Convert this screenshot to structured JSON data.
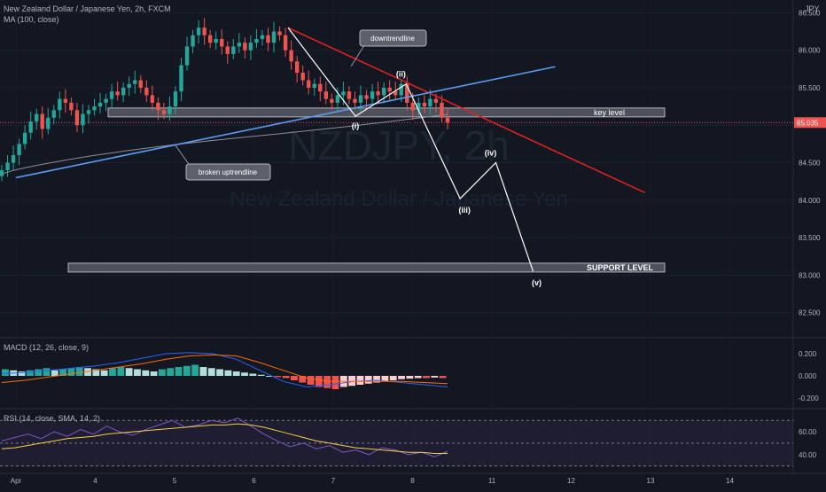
{
  "header": {
    "symbol_line": "New Zealand Dollar / Japanese Yen, 2h, FXCM",
    "ma_line": "MA (100, close)",
    "currency": "JPY"
  },
  "watermark": {
    "symbol": "NZDJPY, 2h",
    "name": "New Zealand Dollar / Japanese Yen"
  },
  "colors": {
    "background": "#131722",
    "up": "#26a69a",
    "down": "#ef5350",
    "ma": "#8c8f96",
    "downtrend": "#e02020",
    "uptrend": "#5b9cf0",
    "wave": "#ffffff",
    "macd_line": "#2962ff",
    "signal_line": "#ff6d00",
    "rsi_line": "#7e57c2",
    "rsi_ma": "#f7d046"
  },
  "chart_data": [
    {
      "type": "candlestick",
      "title": "New Zealand Dollar / Japanese Yen, 2h, FXCM",
      "price_axis": {
        "ticks": [
          86.5,
          86.0,
          85.5,
          85.0,
          84.5,
          84.0,
          83.5,
          83.0,
          82.5
        ],
        "tick_labels": [
          "86.500",
          "86.000",
          "85.500",
          "85.000",
          "84.500",
          "84.000",
          "83.500",
          "83.000",
          "82.500"
        ],
        "range": [
          82.2,
          86.67
        ],
        "current_price": 85.035,
        "current_label": "85.035"
      },
      "time_axis": {
        "labels": [
          "Apr",
          "4",
          "5",
          "6",
          "7",
          "8",
          "11",
          "12",
          "13",
          "14"
        ],
        "label_positions_days": [
          0,
          1,
          2,
          3,
          4,
          5,
          6,
          7,
          8,
          9
        ]
      },
      "candles_close_path": [
        84.4,
        84.5,
        84.6,
        84.75,
        84.9,
        85.05,
        85.15,
        84.95,
        85.1,
        85.2,
        85.35,
        85.3,
        85.2,
        85.0,
        85.15,
        85.2,
        85.25,
        85.3,
        85.35,
        85.45,
        85.4,
        85.5,
        85.55,
        85.6,
        85.5,
        85.4,
        85.3,
        85.2,
        85.15,
        85.25,
        85.45,
        85.8,
        86.05,
        86.2,
        86.3,
        86.2,
        86.1,
        86.15,
        86.05,
        85.95,
        86.05,
        86.1,
        86.0,
        86.1,
        86.15,
        86.2,
        86.1,
        86.25,
        86.2,
        86.0,
        85.85,
        85.7,
        85.6,
        85.5,
        85.55,
        85.45,
        85.35,
        85.3,
        85.4,
        85.45,
        85.35,
        85.3,
        85.4,
        85.35,
        85.45,
        85.4,
        85.5,
        85.45,
        85.4,
        85.55,
        85.3,
        85.2,
        85.3,
        85.25,
        85.35,
        85.3,
        85.1,
        85.035
      ],
      "moving_average": {
        "name": "MA (100, close)",
        "start": 84.35,
        "end": 85.15
      },
      "annotations": {
        "downtrendline": {
          "label": "downtrendline",
          "from": [
            3.43,
            86.3
          ],
          "to": [
            7.93,
            84.1
          ]
        },
        "uptrendline": {
          "label": "broken uptrendline",
          "from": [
            0,
            84.3
          ],
          "to": [
            6.8,
            85.78
          ]
        },
        "key_level": {
          "label": "key level",
          "price": 85.17
        },
        "support_level": {
          "label": "SUPPORT LEVEL",
          "price": 83.1
        },
        "waves": [
          {
            "label": "(i)",
            "price": 85.12
          },
          {
            "label": "(ii)",
            "price": 85.55
          },
          {
            "label": "(iii)",
            "price": 84.02
          },
          {
            "label": "(iv)",
            "price": 84.5
          },
          {
            "label": "(v)",
            "price": 83.05
          }
        ]
      }
    },
    {
      "type": "bar",
      "title": "MACD (12, 26, close, 9)",
      "ticks": [
        0.2,
        0.0,
        -0.2
      ],
      "tick_labels": [
        "0.200",
        "0.000",
        "-0.200"
      ],
      "range": [
        -0.28,
        0.32
      ],
      "histogram": [
        0.06,
        0.05,
        0.04,
        0.05,
        0.06,
        0.07,
        0.05,
        0.06,
        0.07,
        0.08,
        0.07,
        0.06,
        0.05,
        0.07,
        0.08,
        0.07,
        0.06,
        0.05,
        0.04,
        0.06,
        0.07,
        0.08,
        0.09,
        0.1,
        0.08,
        0.07,
        0.06,
        0.05,
        0.04,
        0.03,
        0.02,
        0.01,
        0.0,
        -0.01,
        -0.02,
        -0.04,
        -0.06,
        -0.08,
        -0.1,
        -0.11,
        -0.12,
        -0.1,
        -0.09,
        -0.08,
        -0.07,
        -0.06,
        -0.05,
        -0.04,
        -0.03,
        -0.025,
        -0.02,
        -0.02,
        -0.015,
        -0.02
      ],
      "macd_line": [
        0.02,
        0.03,
        0.05,
        0.07,
        0.09,
        0.12,
        0.16,
        0.2,
        0.21,
        0.2,
        0.15,
        0.05,
        -0.05,
        -0.1,
        -0.08,
        -0.05,
        -0.04,
        -0.06,
        -0.08,
        -0.1
      ],
      "signal_line": [
        -0.06,
        -0.04,
        -0.01,
        0.02,
        0.05,
        0.08,
        0.11,
        0.15,
        0.18,
        0.19,
        0.18,
        0.12,
        0.05,
        -0.02,
        -0.05,
        -0.05,
        -0.05,
        -0.05,
        -0.06,
        -0.07
      ]
    },
    {
      "type": "line",
      "title": "RSI (14, close, SMA, 14, 2)",
      "ticks": [
        60,
        40
      ],
      "tick_labels": [
        "60.00",
        "40.00"
      ],
      "range": [
        25,
        78
      ],
      "rsi": [
        52,
        55,
        58,
        54,
        60,
        56,
        62,
        58,
        65,
        60,
        57,
        62,
        66,
        70,
        64,
        66,
        70,
        68,
        72,
        65,
        58,
        52,
        47,
        50,
        45,
        48,
        42,
        44,
        40,
        46,
        44,
        40,
        42,
        38,
        43
      ],
      "rsi_ma": [
        45,
        46,
        48,
        50,
        52,
        54,
        55,
        56,
        58,
        59,
        60,
        61,
        62,
        63,
        64,
        65,
        66,
        66,
        67,
        66,
        64,
        61,
        58,
        55,
        52,
        50,
        48,
        46,
        45,
        44,
        43,
        42,
        42,
        41,
        41
      ]
    }
  ]
}
